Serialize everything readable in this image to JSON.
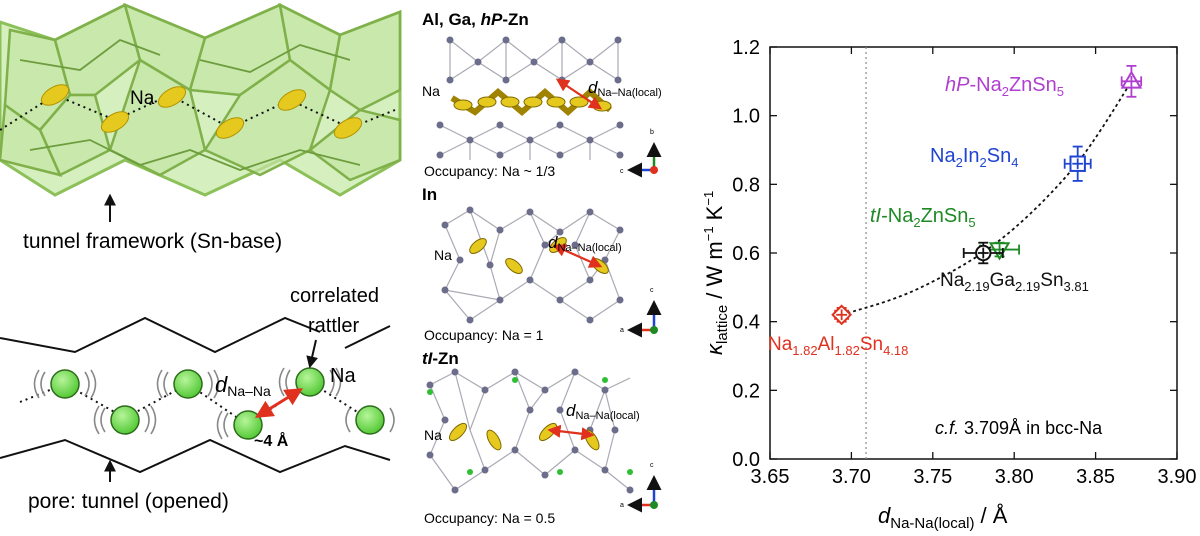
{
  "panel_left": {
    "na_label": "Na",
    "framework_label": "tunnel framework (Sn-base)",
    "correlated_label_1": "correlated",
    "correlated_label_2": "rattler",
    "na_label_2": "Na",
    "d_main": "d",
    "d_sub": "Na–Na",
    "approx_4": "~4 Å",
    "pore_label": "pore: tunnel (opened)"
  },
  "panel_middle": {
    "s1_title_a": "Al, Ga, ",
    "s1_title_b": "hP",
    "s1_title_c": "-Zn",
    "s1_na": "Na",
    "s1_d": "d",
    "s1_d_sub": "Na–Na(local)",
    "s1_occ": "Occupancy: Na ~ 1/3",
    "s1_axis_up": "b",
    "s1_axis_right": "c",
    "s2_title": "In",
    "s2_na": "Na",
    "s2_d": "d",
    "s2_d_sub": "Na–Na(local)",
    "s2_occ": "Occupancy: Na = 1",
    "s2_axis_up": "c",
    "s2_axis_right": "a",
    "s3_title_a": "tI",
    "s3_title_b": "-Zn",
    "s3_na": "Na",
    "s3_d": "d",
    "s3_d_sub": "Na–Na(local)",
    "s3_occ": "Occupancy: Na = 0.5",
    "s3_axis_up": "c",
    "s3_axis_right": "a"
  },
  "colors": {
    "framework_green": "#a8d86a",
    "framework_edge": "#7fb04a",
    "na_yellow": "#e6c91e",
    "sphere_green": "#66dd44",
    "arrow_red": "#e0301e",
    "atom_gray": "#6b6d8a",
    "hp": "#b03fd0",
    "in": "#1f44d0",
    "tl": "#1e8a24",
    "ga": "#111111",
    "al": "#e0301e"
  },
  "chart_data": {
    "type": "scatter",
    "xlabel_main": "d",
    "xlabel_sub": "Na-Na(local)",
    "xlabel_unit": " / Å",
    "ylabel_main": "κ",
    "ylabel_sub": "lattice",
    "ylabel_unit": " / W m",
    "ylabel_exp1": "−1",
    "ylabel_k": " K",
    "ylabel_exp2": "−1",
    "xlim": [
      3.65,
      3.9
    ],
    "ylim": [
      0.0,
      1.2
    ],
    "xticks": [
      "3.65",
      "3.70",
      "3.75",
      "3.80",
      "3.85",
      "3.90"
    ],
    "yticks": [
      "0.0",
      "0.2",
      "0.4",
      "0.6",
      "0.8",
      "1.0",
      "1.2"
    ],
    "ref_x": 3.709,
    "annotation_cf": "c.f.",
    "annotation_rest": " 3.709Å in bcc-Na",
    "series": [
      {
        "name": "hP-Na2ZnSn5",
        "label_a": "hP",
        "label_b": "-Na",
        "label_c": "2",
        "label_d": "ZnSn",
        "label_e": "5",
        "x": 3.872,
        "y": 1.1,
        "xerr": 0.006,
        "yerr": 0.045,
        "marker": "triangle-up",
        "color": "#b03fd0"
      },
      {
        "name": "Na2In2Sn4",
        "label_a": "Na",
        "label_b": "2",
        "label_c": "In",
        "label_d": "2",
        "label_e": "Sn",
        "label_f": "4",
        "x": 3.839,
        "y": 0.86,
        "xerr": 0.008,
        "yerr": 0.05,
        "marker": "square",
        "color": "#1f44d0"
      },
      {
        "name": "tI-Na2ZnSn5",
        "label_a": "tI",
        "label_b": "-Na",
        "label_c": "2",
        "label_d": "ZnSn",
        "label_e": "5",
        "x": 3.791,
        "y": 0.61,
        "xerr": 0.012,
        "yerr": 0.02,
        "marker": "triangle-down",
        "color": "#1e8a24"
      },
      {
        "name": "Na2.19Ga2.19Sn3.81",
        "label_a": "Na",
        "label_b": "2.19",
        "label_c": "Ga",
        "label_d": "2.19",
        "label_e": "Sn",
        "label_f": "3.81",
        "x": 3.781,
        "y": 0.6,
        "xerr": 0.012,
        "yerr": 0.03,
        "marker": "circle",
        "color": "#111111"
      },
      {
        "name": "Na1.82Al1.82Sn4.18",
        "label_a": "Na",
        "label_b": "1.82",
        "label_c": "Al",
        "label_d": "1.82",
        "label_e": "Sn",
        "label_f": "4.18",
        "x": 3.694,
        "y": 0.42,
        "xerr": 0.004,
        "yerr": 0.02,
        "marker": "diamond",
        "color": "#e0301e"
      }
    ],
    "trend": {
      "x": [
        3.694,
        3.73,
        3.76,
        3.781,
        3.8,
        3.82,
        3.839,
        3.855,
        3.872
      ],
      "y": [
        0.42,
        0.47,
        0.54,
        0.6,
        0.67,
        0.76,
        0.86,
        0.97,
        1.1
      ]
    }
  }
}
